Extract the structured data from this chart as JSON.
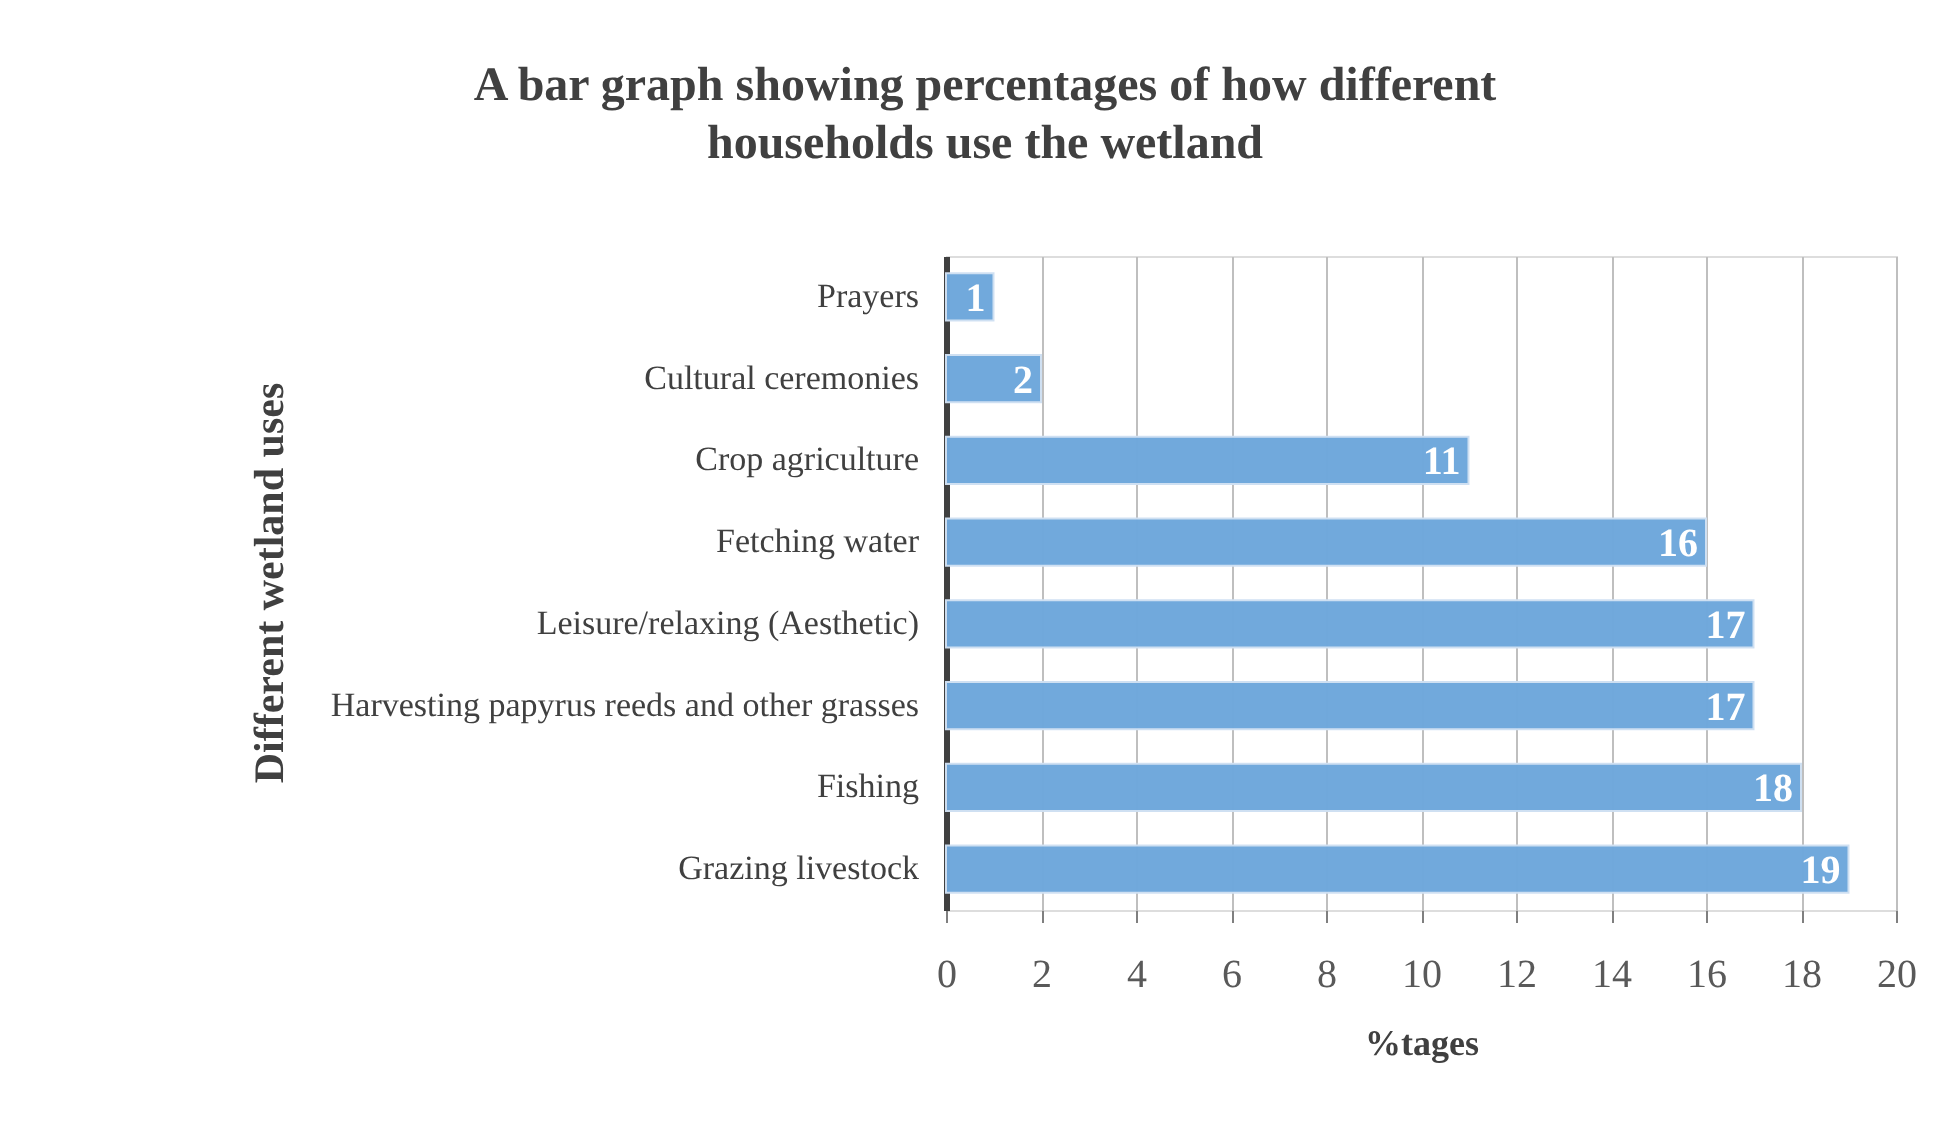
{
  "chart_data": {
    "type": "bar",
    "orientation": "horizontal",
    "title": "A bar graph showing percentages of how different households use the wetland",
    "xlabel": "%tages",
    "ylabel": "Different wetland uses",
    "categories": [
      "Prayers",
      "Cultural ceremonies",
      "Crop agriculture",
      "Fetching water",
      "Leisure/relaxing (Aesthetic)",
      "Harvesting papyrus reeds and other grasses",
      "Fishing",
      "Grazing livestock"
    ],
    "values": [
      1,
      2,
      11,
      16,
      17,
      17,
      18,
      19
    ],
    "color": "#6fa8dc",
    "xlim": [
      0,
      20
    ],
    "xticks": [
      0,
      2,
      4,
      6,
      8,
      10,
      12,
      14,
      16,
      18,
      20
    ],
    "grid": "x",
    "data_labels": true
  }
}
